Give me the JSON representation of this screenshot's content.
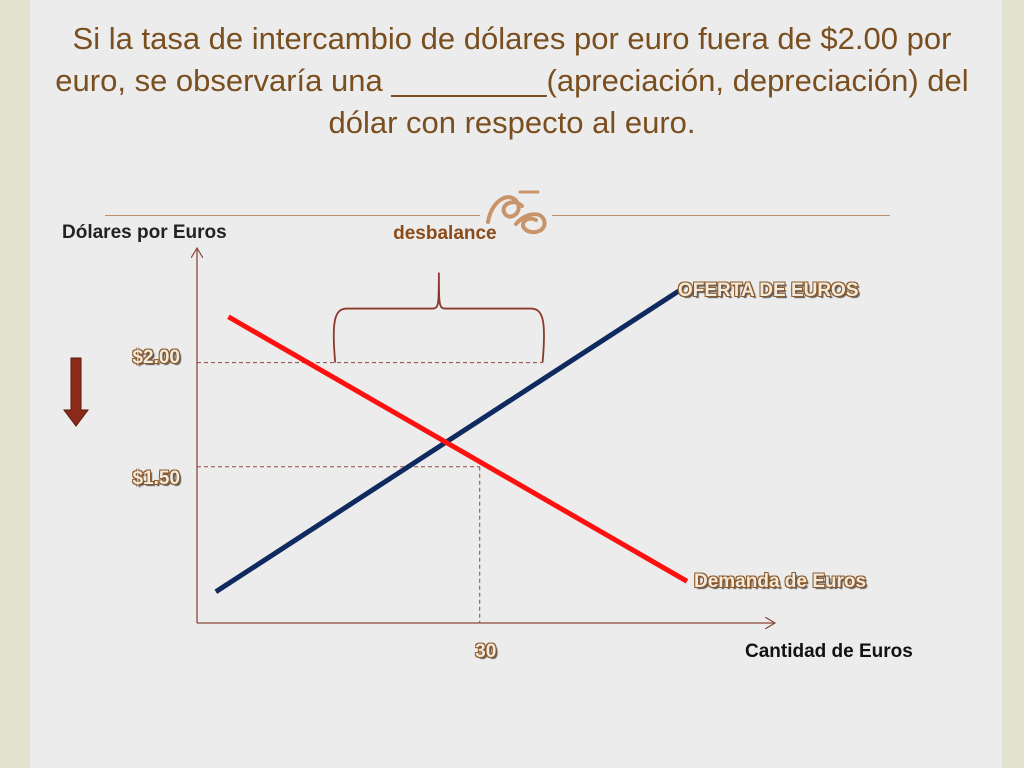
{
  "slide": {
    "title": "Si la tasa de intercambio de dólares por euro fuera de $2.00 por euro, se observaría una _________(apreciación, depreciación) del dólar con respecto al euro."
  },
  "colors": {
    "background": "#e3e2cf",
    "panel": "#ececec",
    "title_text": "#7a4f1f",
    "supply_line": "#0f2a5e",
    "demand_line": "#ff1010",
    "axis": "#8b4a3a",
    "bracket": "#8b3a2a",
    "arrow": "#8b2a1a"
  },
  "ornament": {
    "icon": "scroll-ornament-icon"
  },
  "chart_data": {
    "type": "line",
    "ylabel": "Dólares por Euros",
    "xlabel": "Cantidad de Euros",
    "series": [
      {
        "name": "OFERTA DE EUROS",
        "points": [
          [
            -12,
            0.9
          ],
          [
            62,
            2.35
          ]
        ]
      },
      {
        "name": "Demanda de Euros",
        "points": [
          [
            -10,
            2.22
          ],
          [
            63,
            0.95
          ]
        ]
      }
    ],
    "price_levels": [
      {
        "label": "$2.00",
        "value": 2.0
      },
      {
        "label": "$1.50",
        "value": 1.5
      }
    ],
    "x_marks": [
      {
        "label": "30",
        "value": 30
      }
    ],
    "annotation": {
      "label": "desbalance",
      "x_from": 7,
      "x_to": 40,
      "at": 2.0
    },
    "direction_arrow": "down",
    "xlim": [
      -15,
      77
    ],
    "ylim": [
      0.75,
      2.55
    ]
  }
}
